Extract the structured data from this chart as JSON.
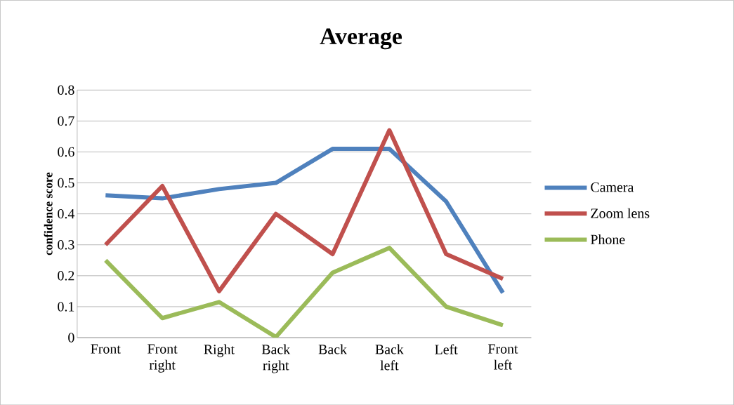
{
  "chart_data": {
    "type": "line",
    "title": "Average",
    "ylabel": "confidence score",
    "categories": [
      "Front",
      "Front right",
      "Right",
      "Back right",
      "Back",
      "Back left",
      "Left",
      "Front left"
    ],
    "series": [
      {
        "name": "Camera",
        "color": "#4f81bd",
        "values": [
          0.46,
          0.45,
          0.48,
          0.5,
          0.61,
          0.61,
          0.44,
          0.145
        ]
      },
      {
        "name": "Zoom lens",
        "color": "#c0504d",
        "values": [
          0.3,
          0.49,
          0.15,
          0.4,
          0.27,
          0.67,
          0.27,
          0.19
        ]
      },
      {
        "name": "Phone",
        "color": "#9bbb59",
        "values": [
          0.25,
          0.063,
          0.115,
          0.002,
          0.21,
          0.29,
          0.1,
          0.04
        ]
      }
    ],
    "ylim": [
      0,
      0.8
    ],
    "yticks": [
      0,
      0.1,
      0.2,
      0.3,
      0.4,
      0.5,
      0.6,
      0.7,
      0.8
    ],
    "grid": "y",
    "legend": "right",
    "marker": "none",
    "line_style": "solid"
  }
}
